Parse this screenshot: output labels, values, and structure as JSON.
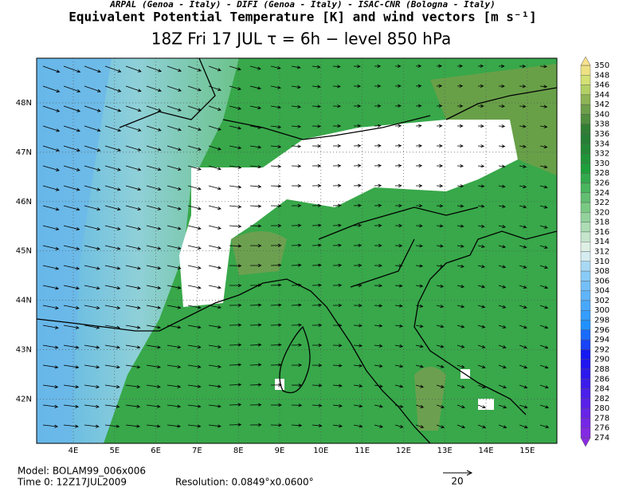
{
  "header": {
    "line1": "ARPAL (Genoa - Italy)  -  DIFI (Genoa - Italy)  -  ISAC-CNR (Bologna - Italy)",
    "line2": "Equivalent Potential Temperature [K] and wind vectors [m s⁻¹]",
    "line3": "18Z Fri 17 JUL  τ = 6h  −  level 850 hPa"
  },
  "map": {
    "lon_labels": [
      "4E",
      "5E",
      "6E",
      "7E",
      "8E",
      "9E",
      "10E",
      "11E",
      "12E",
      "13E",
      "14E",
      "15E"
    ],
    "lat_labels": [
      "48N",
      "47N",
      "46N",
      "45N",
      "44N",
      "43N",
      "42N"
    ]
  },
  "colorbar": {
    "levels": [
      350,
      348,
      346,
      344,
      342,
      340,
      338,
      336,
      334,
      332,
      330,
      328,
      326,
      324,
      322,
      320,
      318,
      316,
      314,
      312,
      310,
      308,
      306,
      304,
      302,
      300,
      298,
      296,
      294,
      292,
      290,
      288,
      286,
      284,
      282,
      280,
      278,
      276,
      274
    ]
  },
  "footer": {
    "model": "Model: BOLAM99_006x006",
    "time": "Time 0: 12Z17JUL2009",
    "resolution": "Resolution: 0.0849°x0.0600°",
    "vector_scale": "20"
  }
}
